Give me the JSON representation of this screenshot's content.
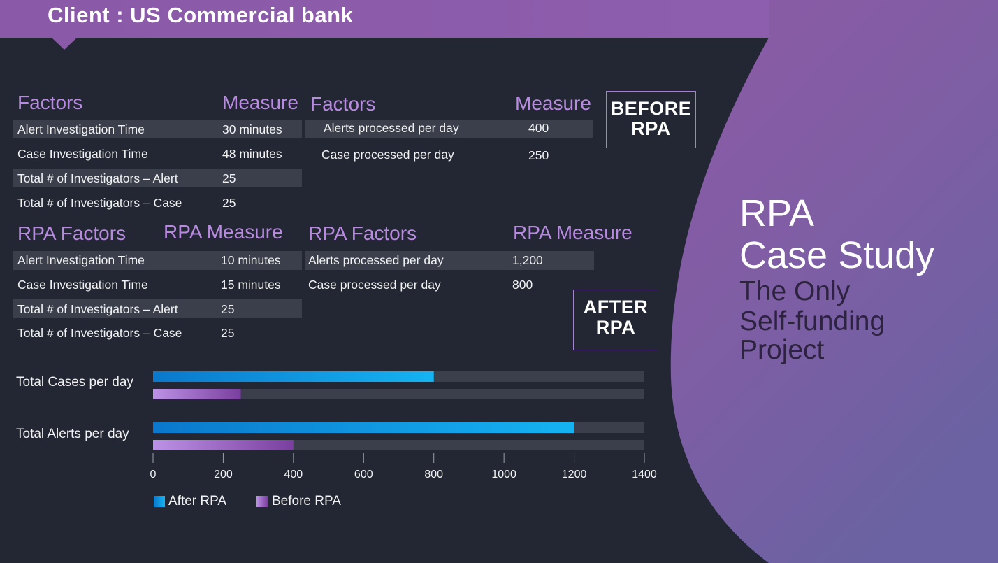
{
  "header": {
    "title": "Client : US Commercial bank"
  },
  "before": {
    "left_table": {
      "col1": "Factors",
      "col2": "Measure",
      "rows": [
        {
          "factor": "Alert Investigation Time",
          "measure": "30 minutes"
        },
        {
          "factor": "Case Investigation Time",
          "measure": "48 minutes"
        },
        {
          "factor": "Total # of Investigators – Alert",
          "measure": "25"
        },
        {
          "factor": "Total # of Investigators – Case",
          "measure": "25"
        }
      ]
    },
    "right_table": {
      "col1": "Factors",
      "col2": "Measure",
      "rows": [
        {
          "factor": "Alerts processed per day",
          "measure": "400"
        },
        {
          "factor": "Case processed per day",
          "measure": "250"
        }
      ]
    },
    "badge": [
      "BEFORE",
      "RPA"
    ]
  },
  "after": {
    "left_table": {
      "col1": "RPA Factors",
      "col2": "RPA Measure",
      "rows": [
        {
          "factor": "Alert Investigation Time",
          "measure": "10 minutes"
        },
        {
          "factor": "Case Investigation Time",
          "measure": "15 minutes"
        },
        {
          "factor": "Total # of Investigators – Alert",
          "measure": "25"
        },
        {
          "factor": "Total # of Investigators – Case",
          "measure": "25"
        }
      ]
    },
    "right_table": {
      "col1": "RPA Factors",
      "col2": "RPA Measure",
      "rows": [
        {
          "factor": "Alerts processed per day",
          "measure": "1,200"
        },
        {
          "factor": "Case processed per day",
          "measure": "800"
        }
      ]
    },
    "badge": [
      "AFTER",
      "RPA"
    ]
  },
  "side": {
    "title": [
      "RPA",
      "Case Study"
    ],
    "subtitle": [
      "The Only",
      "Self-funding",
      "Project"
    ]
  },
  "colors": {
    "accent_purple": "#b88ae0",
    "after_bar": "#10a6e8",
    "before_bar": "#a97dd6",
    "bar_track": "#3a3f4b",
    "background": "#222733"
  },
  "chart_data": {
    "type": "bar",
    "orientation": "horizontal",
    "categories": [
      "Total Cases per day",
      "Total Alerts per day"
    ],
    "series": [
      {
        "name": "After RPA",
        "values": [
          800,
          1200
        ]
      },
      {
        "name": "Before RPA",
        "values": [
          250,
          400
        ]
      }
    ],
    "xlim": [
      0,
      1400
    ],
    "xticks": [
      "0",
      "200",
      "400",
      "600",
      "800",
      "1000",
      "1200",
      "1400"
    ],
    "legend_position": "bottom-left",
    "grid": false
  }
}
